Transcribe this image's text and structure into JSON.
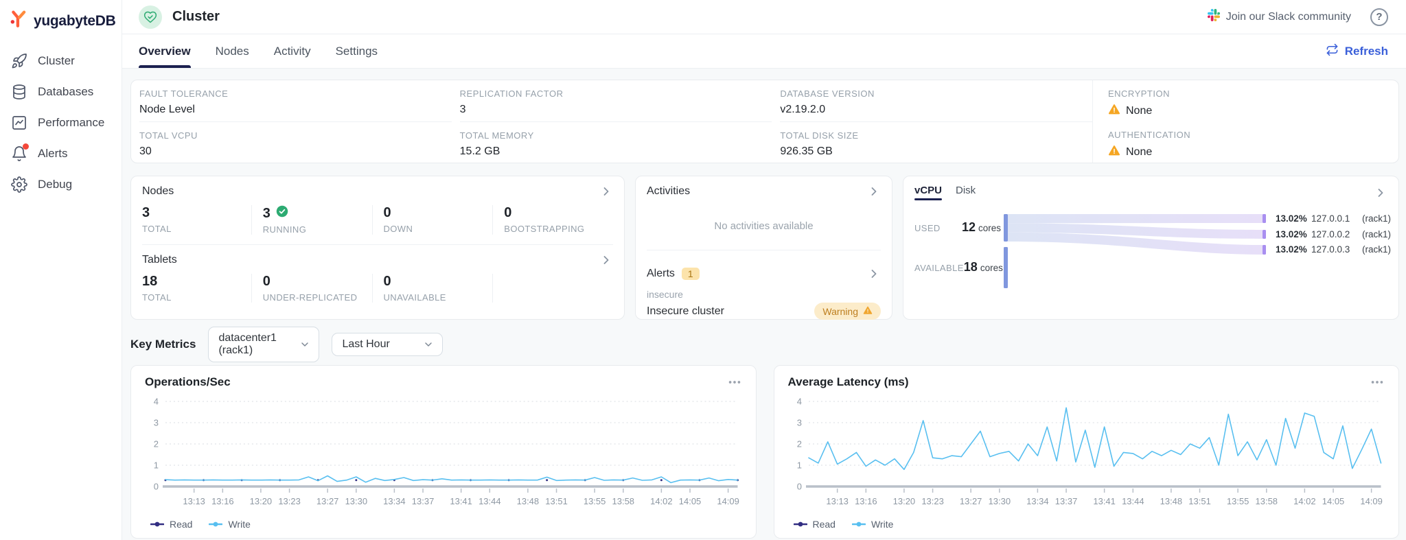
{
  "sidebar": {
    "logo_text": "yugabyteDB",
    "items": [
      {
        "label": "Cluster",
        "icon": "rocket-icon"
      },
      {
        "label": "Databases",
        "icon": "database-icon"
      },
      {
        "label": "Performance",
        "icon": "performance-chart-icon"
      },
      {
        "label": "Alerts",
        "icon": "bell-icon",
        "has_notification_dot": true
      },
      {
        "label": "Debug",
        "icon": "gear-icon"
      }
    ]
  },
  "topbar": {
    "title": "Cluster",
    "slack_label": "Join our Slack community",
    "help_glyph": "?"
  },
  "tabs": {
    "items": [
      {
        "label": "Overview",
        "active": true
      },
      {
        "label": "Nodes",
        "active": false
      },
      {
        "label": "Activity",
        "active": false
      },
      {
        "label": "Settings",
        "active": false
      }
    ],
    "refresh_label": "Refresh"
  },
  "info_panel": {
    "fields": [
      {
        "label": "FAULT TOLERANCE",
        "value": "Node Level"
      },
      {
        "label": "REPLICATION FACTOR",
        "value": "3"
      },
      {
        "label": "DATABASE VERSION",
        "value": "v2.19.2.0"
      },
      {
        "label": "TOTAL VCPU",
        "value": "30"
      },
      {
        "label": "TOTAL MEMORY",
        "value": "15.2 GB"
      },
      {
        "label": "TOTAL DISK SIZE",
        "value": "926.35 GB"
      }
    ],
    "security": [
      {
        "label": "ENCRYPTION",
        "value": "None",
        "warning": true
      },
      {
        "label": "AUTHENTICATION",
        "value": "None",
        "warning": true
      }
    ]
  },
  "nodes_card": {
    "title": "Nodes",
    "stats": [
      {
        "value": "3",
        "label": "TOTAL"
      },
      {
        "value": "3",
        "label": "RUNNING",
        "check": true
      },
      {
        "value": "0",
        "label": "DOWN"
      },
      {
        "value": "0",
        "label": "BOOTSTRAPPING"
      }
    ],
    "tablets": {
      "title": "Tablets",
      "stats": [
        {
          "value": "18",
          "label": "TOTAL"
        },
        {
          "value": "0",
          "label": "UNDER-REPLICATED"
        },
        {
          "value": "0",
          "label": "UNAVAILABLE"
        }
      ]
    }
  },
  "activities_card": {
    "title": "Activities",
    "empty_message": "No activities available",
    "alerts_title": "Alerts",
    "alerts_count": "1",
    "alert": {
      "name": "insecure",
      "description": "Insecure cluster",
      "badge": "Warning"
    }
  },
  "usage_card": {
    "tabs": [
      {
        "label": "vCPU",
        "active": true
      },
      {
        "label": "Disk",
        "active": false
      }
    ],
    "used_label": "USED",
    "used_value": "12",
    "used_unit": "cores",
    "available_label": "AVAILABLE",
    "available_value": "18",
    "available_unit": "cores",
    "rows": [
      {
        "percent": "13.02%",
        "ip": "127.0.0.1",
        "rack": "(rack1)"
      },
      {
        "percent": "13.02%",
        "ip": "127.0.0.2",
        "rack": "(rack1)"
      },
      {
        "percent": "13.02%",
        "ip": "127.0.0.3",
        "rack": "(rack1)"
      }
    ]
  },
  "key_metrics": {
    "title": "Key Metrics",
    "region_value": "datacenter1 (rack1)",
    "interval_value": "Last Hour"
  },
  "chart_data": [
    {
      "type": "line",
      "title": "Operations/Sec",
      "xlabel": "",
      "ylabel": "",
      "ylim": [
        0,
        4
      ],
      "yticks": [
        0,
        1,
        2,
        3,
        4
      ],
      "grid": "dotted-horizontal",
      "legend_position": "bottom",
      "x_span_minutes": 60,
      "x_start_label": "13:10",
      "tick_minutes": [
        3,
        6,
        10,
        13,
        17,
        20,
        24,
        27,
        31,
        34,
        38,
        41,
        45,
        48,
        52,
        55,
        59
      ],
      "tick_labels": [
        "13:13",
        "13:16",
        "13:20",
        "13:23",
        "13:27",
        "13:30",
        "13:34",
        "13:37",
        "13:41",
        "13:44",
        "13:48",
        "13:51",
        "13:55",
        "13:58",
        "14:02",
        "14:05",
        "14:09"
      ],
      "series": [
        {
          "name": "Read",
          "color": "#322e82",
          "style": "dots",
          "flat": 0.3,
          "points": 61
        },
        {
          "name": "Write",
          "color": "#58bff0",
          "style": "line",
          "values": [
            0.32,
            0.3,
            0.31,
            0.3,
            0.3,
            0.31,
            0.3,
            0.3,
            0.31,
            0.3,
            0.3,
            0.31,
            0.3,
            0.3,
            0.31,
            0.45,
            0.27,
            0.5,
            0.24,
            0.3,
            0.45,
            0.2,
            0.38,
            0.28,
            0.33,
            0.42,
            0.28,
            0.32,
            0.3,
            0.36,
            0.3,
            0.31,
            0.3,
            0.3,
            0.31,
            0.3,
            0.3,
            0.31,
            0.3,
            0.3,
            0.44,
            0.28,
            0.3,
            0.31,
            0.3,
            0.42,
            0.29,
            0.31,
            0.3,
            0.4,
            0.29,
            0.31,
            0.45,
            0.18,
            0.3,
            0.31,
            0.3,
            0.4,
            0.27,
            0.33,
            0.3
          ]
        }
      ]
    },
    {
      "type": "line",
      "title": "Average Latency (ms)",
      "xlabel": "",
      "ylabel": "",
      "ylim": [
        0,
        4
      ],
      "yticks": [
        0,
        1,
        2,
        3,
        4
      ],
      "grid": "dotted-horizontal",
      "legend_position": "bottom",
      "x_span_minutes": 60,
      "x_start_label": "13:10",
      "tick_minutes": [
        3,
        6,
        10,
        13,
        17,
        20,
        24,
        27,
        31,
        34,
        38,
        41,
        45,
        48,
        52,
        55,
        59
      ],
      "tick_labels": [
        "13:13",
        "13:16",
        "13:20",
        "13:23",
        "13:27",
        "13:30",
        "13:34",
        "13:37",
        "13:41",
        "13:44",
        "13:48",
        "13:51",
        "13:55",
        "13:58",
        "14:02",
        "14:05",
        "14:09"
      ],
      "series": [
        {
          "name": "Read",
          "color": "#322e82",
          "style": "line",
          "values": []
        },
        {
          "name": "Write",
          "color": "#58bff0",
          "style": "line",
          "values": [
            1.35,
            1.1,
            2.1,
            1.05,
            1.3,
            1.6,
            0.95,
            1.25,
            1.0,
            1.3,
            0.8,
            1.6,
            3.1,
            1.35,
            1.3,
            1.45,
            1.4,
            2.0,
            2.6,
            1.4,
            1.55,
            1.65,
            1.2,
            2.0,
            1.45,
            2.8,
            1.2,
            3.7,
            1.15,
            2.65,
            0.9,
            2.8,
            0.95,
            1.6,
            1.55,
            1.3,
            1.65,
            1.45,
            1.7,
            1.5,
            2.0,
            1.8,
            2.3,
            1.0,
            3.4,
            1.45,
            2.1,
            1.25,
            2.2,
            1.0,
            3.2,
            1.8,
            3.45,
            3.3,
            1.6,
            1.3,
            2.85,
            0.85,
            1.75,
            2.7,
            1.1
          ]
        }
      ]
    }
  ],
  "colors": {
    "accent_blue": "#3a5fd9",
    "tab_underline_navy": "#1c2150",
    "read_line": "#322e82",
    "write_line": "#58bff0",
    "warning_amber": "#f5a623",
    "success_green": "#2dab72",
    "sankey_left_bar": "#8097de",
    "sankey_right_bar": "#a98ff0",
    "logo_orange": "#ff5f3b",
    "logo_red": "#ed3437"
  }
}
